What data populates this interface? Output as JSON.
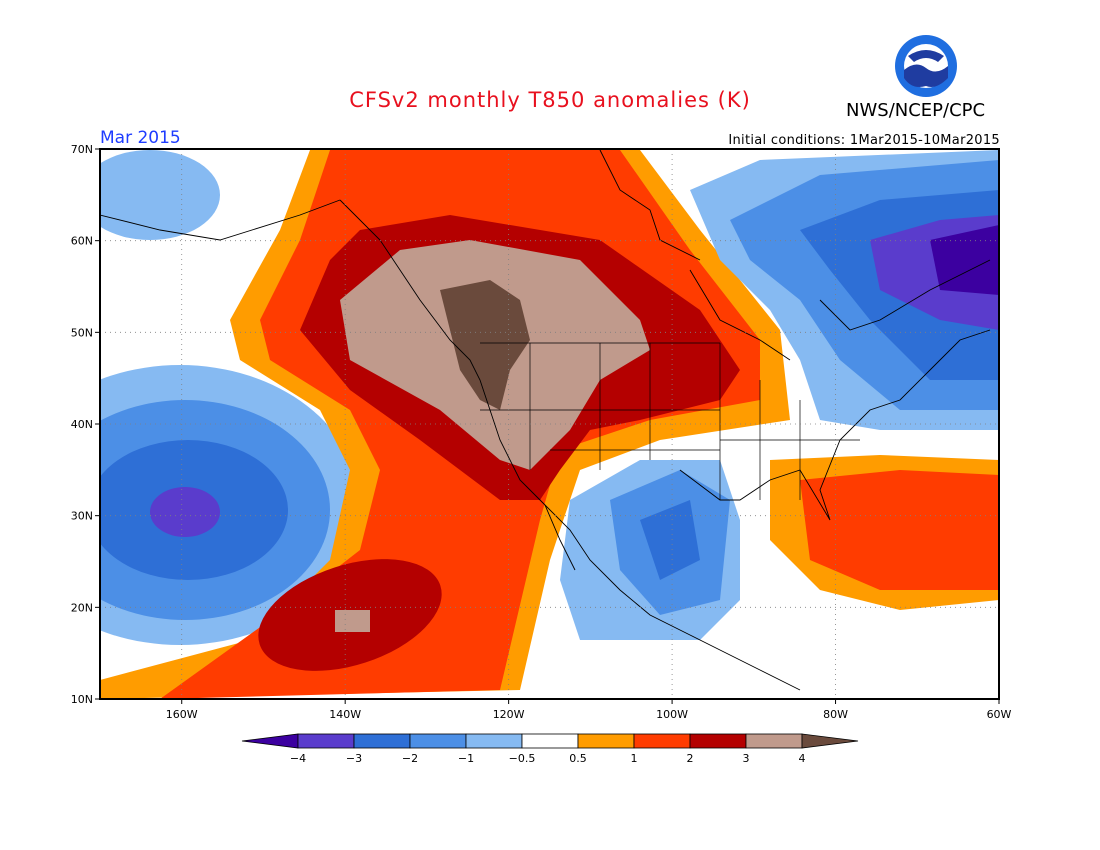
{
  "header": {
    "title": "CFSv2 monthly T850 anomalies (K)",
    "agency": "NWS/NCEP/CPC",
    "logo_text": "NOAA",
    "month": "Mar 2015",
    "initial_conditions": "Initial conditions: 1Mar2015-10Mar2015"
  },
  "axes": {
    "lat_labels": [
      "70N",
      "60N",
      "50N",
      "40N",
      "30N",
      "20N",
      "10N"
    ],
    "lon_labels": [
      "160W",
      "140W",
      "120W",
      "100W",
      "80W",
      "60W"
    ]
  },
  "colorbar": {
    "labels": [
      "−4",
      "−3",
      "−2",
      "−1",
      "−0.5",
      "0.5",
      "1",
      "2",
      "3",
      "4"
    ],
    "colors": [
      "#3c00a0",
      "#5a3ccc",
      "#2e6fd6",
      "#4c8fe6",
      "#86baf2",
      "#ffffff",
      "#ff9c00",
      "#ff3c00",
      "#b40000",
      "#c09a8c",
      "#6a4a3c"
    ]
  }
}
